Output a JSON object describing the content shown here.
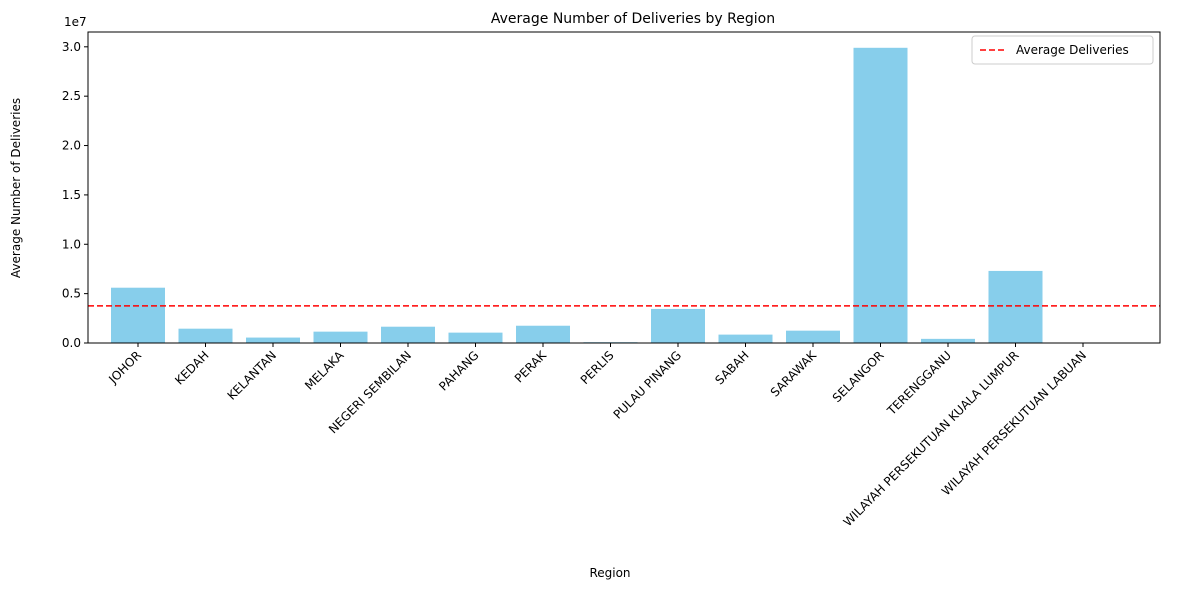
{
  "chart_data": {
    "type": "bar",
    "title": "Average Number of Deliveries by Region",
    "xlabel": "Region",
    "ylabel": "Average Number of Deliveries",
    "y_scale_label": "1e7",
    "ylim": [
      0,
      31500000.0
    ],
    "yticks": [
      0,
      5000000,
      10000000,
      15000000,
      20000000,
      25000000,
      30000000
    ],
    "ytick_labels": [
      "0.0",
      "0.5",
      "1.0",
      "1.5",
      "2.0",
      "2.5",
      "3.0"
    ],
    "categories": [
      "JOHOR",
      "KEDAH",
      "KELANTAN",
      "MELAKA",
      "NEGERI SEMBILAN",
      "PAHANG",
      "PERAK",
      "PERLIS",
      "PULAU PINANG",
      "SABAH",
      "SARAWAK",
      "SELANGOR",
      "TERENGGANU",
      "WILAYAH PERSEKUTUAN KUALA LUMPUR",
      "WILAYAH PERSEKUTUAN LABUAN"
    ],
    "values": [
      5600000,
      1450000,
      550000,
      1150000,
      1650000,
      1050000,
      1750000,
      80000,
      3450000,
      850000,
      1250000,
      29900000,
      420000,
      7300000,
      20000
    ],
    "bar_color": "#87CEEB",
    "average_line": {
      "value": 3760000,
      "label": "Average Deliveries",
      "color": "#FF0000",
      "style": "dashed"
    },
    "grid": false,
    "legend_position": "top-right",
    "xtick_rotation": 45
  }
}
